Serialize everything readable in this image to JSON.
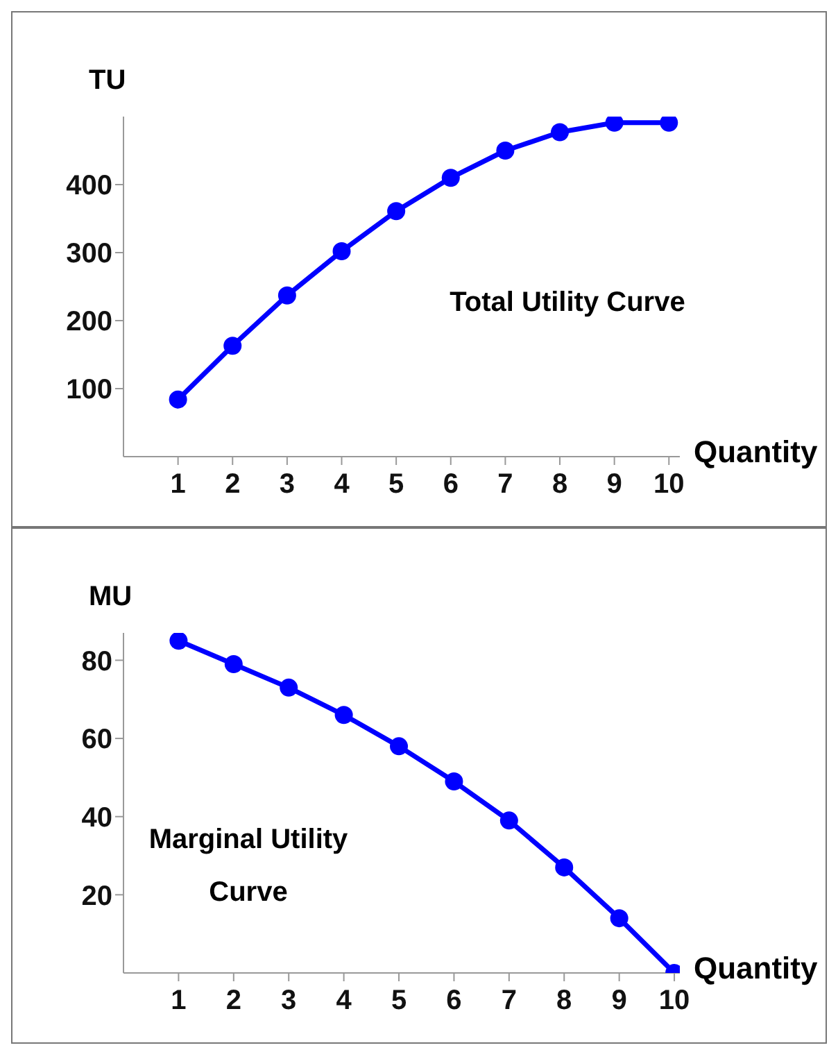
{
  "chart_data": [
    {
      "type": "line",
      "ylabel": "TU",
      "xlabel": "Quantity",
      "annotations": [
        "Total Utility Curve"
      ],
      "x": [
        1,
        2,
        3,
        4,
        5,
        6,
        7,
        8,
        9,
        10
      ],
      "series": [
        {
          "color": "#0000ff",
          "values": [
            84,
            163,
            237,
            302,
            361,
            410,
            450,
            477,
            491,
            491
          ]
        }
      ],
      "xlim": [
        0,
        10.2
      ],
      "xticks": [
        1,
        2,
        3,
        4,
        5,
        6,
        7,
        8,
        9,
        10
      ],
      "ylim": [
        0,
        500
      ],
      "yticks": [
        100,
        200,
        300,
        400
      ],
      "marker": "circle",
      "line_style": "solid"
    },
    {
      "type": "line",
      "ylabel": "MU",
      "xlabel": "Quantity",
      "annotations": [
        "Marginal Utility Curve"
      ],
      "x": [
        1,
        2,
        3,
        4,
        5,
        6,
        7,
        8,
        9,
        10
      ],
      "series": [
        {
          "color": "#0000ff",
          "values": [
            85,
            79,
            73,
            66,
            58,
            49,
            39,
            27,
            14,
            0
          ]
        }
      ],
      "xlim": [
        0,
        10.1
      ],
      "xticks": [
        1,
        2,
        3,
        4,
        5,
        6,
        7,
        8,
        9,
        10
      ],
      "ylim": [
        0,
        87
      ],
      "yticks": [
        20,
        40,
        60,
        80
      ],
      "marker": "circle",
      "line_style": "solid"
    }
  ]
}
